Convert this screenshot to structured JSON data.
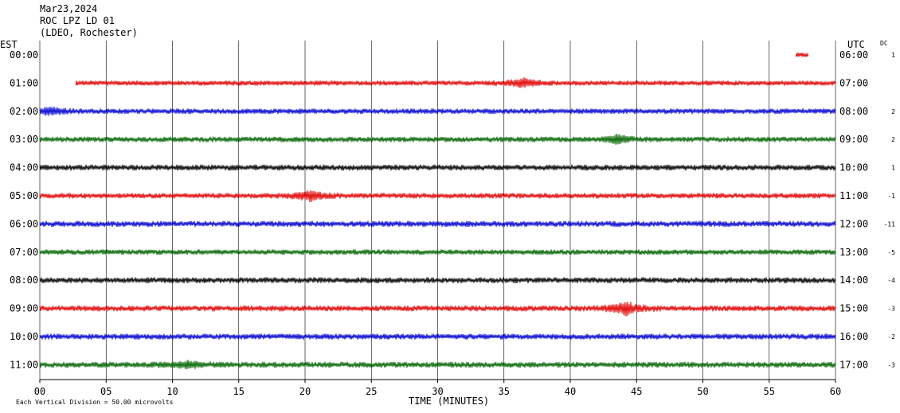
{
  "header": {
    "date": "Mar23,2024",
    "station": "ROC LPZ LD 01",
    "network": "(LDEO, Rochester)"
  },
  "left_zone_label": "EST",
  "right_zone_label": "UTC",
  "dc_label": "DC",
  "footer_note": "Each Vertical Division =   50.00 microvolts",
  "colors": {
    "red": "#e00000",
    "blue": "#0000d0",
    "green": "#006400",
    "black": "#000000",
    "grid": "#000000"
  },
  "chart_data": {
    "type": "line",
    "title": "",
    "xlabel": "TIME (MINUTES)",
    "ylabel": "",
    "xlim": [
      0,
      60
    ],
    "x_ticks": [
      "00",
      "05",
      "10",
      "15",
      "20",
      "25",
      "30",
      "35",
      "40",
      "45",
      "50",
      "55",
      "60"
    ],
    "rows": [
      {
        "est": "00:00",
        "utc": "06:00",
        "dc": "1",
        "color": "red",
        "start_min": 57.0,
        "end_min": 58.0,
        "amp": 2
      },
      {
        "est": "01:00",
        "utc": "07:00",
        "dc": "",
        "color": "red",
        "start_min": 2.7,
        "end_min": 60,
        "amp": 2.2
      },
      {
        "est": "02:00",
        "utc": "08:00",
        "dc": "2",
        "color": "blue",
        "start_min": 0,
        "end_min": 60,
        "amp": 2.4
      },
      {
        "est": "03:00",
        "utc": "09:00",
        "dc": "2",
        "color": "green",
        "start_min": 0,
        "end_min": 60,
        "amp": 2.4
      },
      {
        "est": "04:00",
        "utc": "10:00",
        "dc": "1",
        "color": "black",
        "start_min": 0,
        "end_min": 60,
        "amp": 2.6
      },
      {
        "est": "05:00",
        "utc": "11:00",
        "dc": "-1",
        "color": "red",
        "start_min": 0,
        "end_min": 60,
        "amp": 2.4
      },
      {
        "est": "06:00",
        "utc": "12:00",
        "dc": "-11",
        "color": "blue",
        "start_min": 0,
        "end_min": 60,
        "amp": 2.6
      },
      {
        "est": "07:00",
        "utc": "13:00",
        "dc": "-5",
        "color": "green",
        "start_min": 0,
        "end_min": 60,
        "amp": 2.4
      },
      {
        "est": "08:00",
        "utc": "14:00",
        "dc": "-4",
        "color": "black",
        "start_min": 0,
        "end_min": 60,
        "amp": 2.6
      },
      {
        "est": "09:00",
        "utc": "15:00",
        "dc": "-3",
        "color": "red",
        "start_min": 0,
        "end_min": 60,
        "amp": 2.6
      },
      {
        "est": "10:00",
        "utc": "16:00",
        "dc": "-2",
        "color": "blue",
        "start_min": 0,
        "end_min": 60,
        "amp": 2.6
      },
      {
        "est": "11:00",
        "utc": "17:00",
        "dc": "-3",
        "color": "green",
        "start_min": 0,
        "end_min": 60,
        "amp": 2.6
      }
    ],
    "events": [
      {
        "row": 1,
        "minute": 36.5,
        "amp": 5
      },
      {
        "row": 2,
        "minute": 0.8,
        "amp": 4
      },
      {
        "row": 3,
        "minute": 43.5,
        "amp": 5
      },
      {
        "row": 5,
        "minute": 20.4,
        "amp": 6
      },
      {
        "row": 9,
        "minute": 44.2,
        "amp": 8
      },
      {
        "row": 11,
        "minute": 11.2,
        "amp": 4
      }
    ],
    "grid": true
  }
}
